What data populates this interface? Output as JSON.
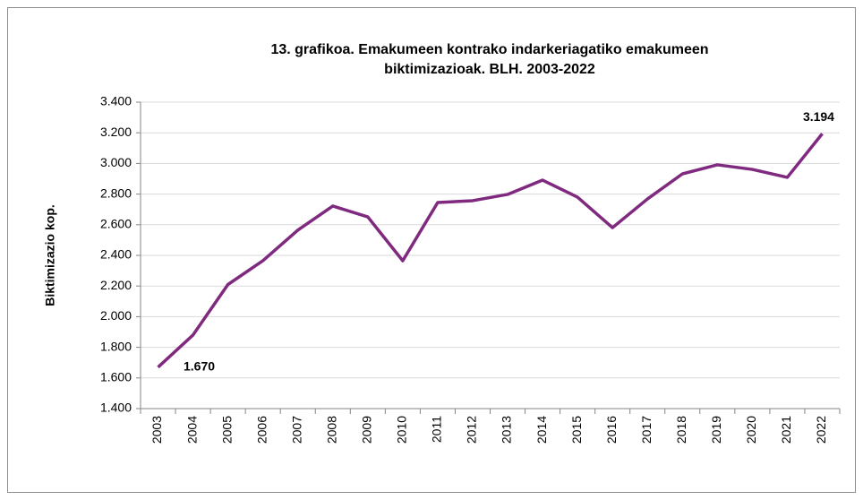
{
  "chart_data": {
    "type": "line",
    "title": "13. grafikoa. Emakumeen kontrako indarkeriagatiko emakumeen biktimizazioak. BLH. 2003-2022",
    "y_label": "Biktimizazio kop.",
    "categories": [
      "2003",
      "2004",
      "2005",
      "2006",
      "2007",
      "2008",
      "2009",
      "2010",
      "2011",
      "2012",
      "2013",
      "2014",
      "2015",
      "2016",
      "2017",
      "2018",
      "2019",
      "2020",
      "2021",
      "2022"
    ],
    "series": [
      {
        "name": "Biktimizazio kop.",
        "color": "#7f2a7f",
        "values": [
          1670,
          1880,
          2210,
          2365,
          2565,
          2722,
          2651,
          2365,
          2745,
          2757,
          2798,
          2891,
          2780,
          2581,
          2768,
          2932,
          2991,
          2961,
          2909,
          3194
        ],
        "value_labels": [
          "1.670",
          null,
          null,
          null,
          null,
          null,
          null,
          null,
          null,
          null,
          null,
          null,
          null,
          null,
          null,
          null,
          null,
          null,
          null,
          "3.194"
        ]
      }
    ],
    "ylim": [
      1400,
      3400
    ],
    "yticks": [
      {
        "value": 1400,
        "label": "1.400"
      },
      {
        "value": 1600,
        "label": "1.600"
      },
      {
        "value": 1800,
        "label": "1.800"
      },
      {
        "value": 2000,
        "label": "2.000"
      },
      {
        "value": 2200,
        "label": "2.200"
      },
      {
        "value": 2400,
        "label": "2.400"
      },
      {
        "value": 2600,
        "label": "2.600"
      },
      {
        "value": 2800,
        "label": "2.800"
      },
      {
        "value": 3000,
        "label": "3.000"
      },
      {
        "value": 3200,
        "label": "3.200"
      },
      {
        "value": 3400,
        "label": "3.400"
      }
    ],
    "grid": true
  }
}
